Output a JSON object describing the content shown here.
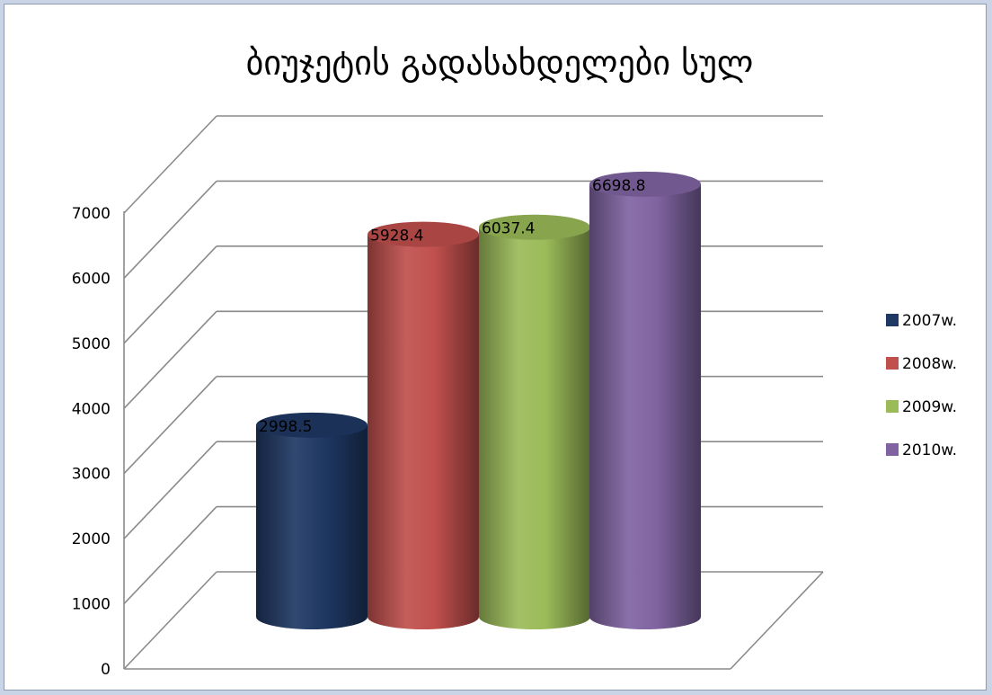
{
  "chart_data": {
    "type": "bar",
    "title": "ბიუჯეტის გადასახდელები სულ",
    "categories": [
      "2007w.",
      "2008w.",
      "2009w.",
      "2010w."
    ],
    "values": [
      2998.5,
      5928.4,
      6037.4,
      6698.8
    ],
    "value_labels": [
      "2998.5",
      "5928.4",
      "6037.4",
      "6698.8"
    ],
    "colors": [
      "#1f3864",
      "#c0504d",
      "#9bbb59",
      "#8064a2"
    ],
    "ylim": [
      0,
      7000
    ],
    "yticks": [
      "0",
      "1000",
      "2000",
      "3000",
      "4000",
      "5000",
      "6000",
      "7000"
    ],
    "grid": true,
    "legend_position": "right",
    "legend": [
      "2007w.",
      "2008w.",
      "2009w.",
      "2010w."
    ],
    "style": "3d-cylinder"
  }
}
